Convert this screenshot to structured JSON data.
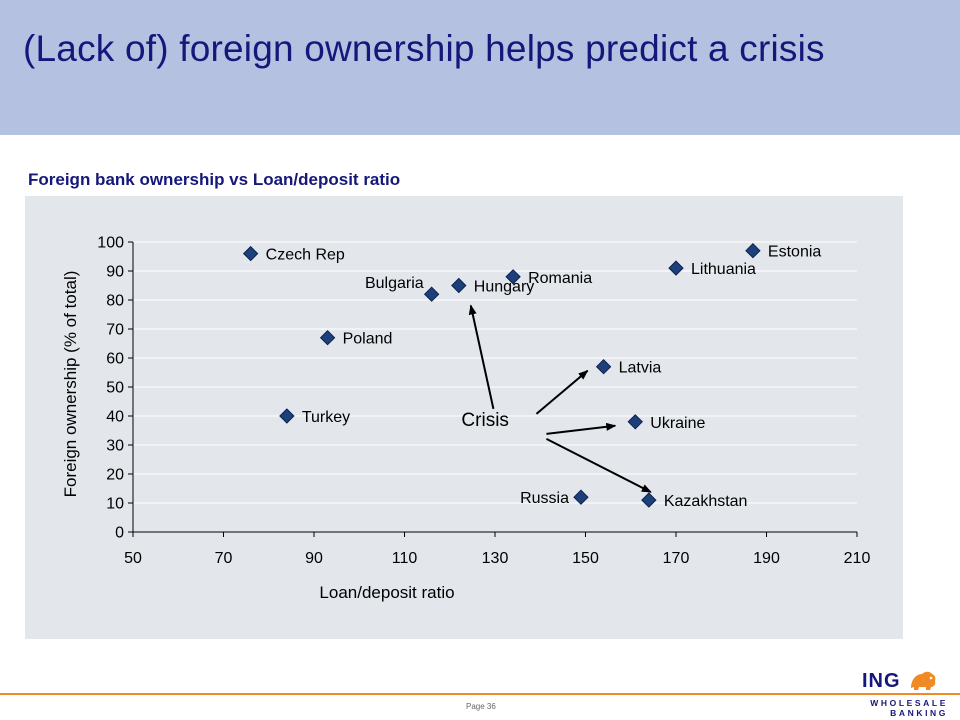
{
  "slide": {
    "title": "(Lack of) foreign ownership helps predict a crisis",
    "subtitle": "Foreign bank ownership vs Loan/deposit ratio",
    "page_number": "Page 36"
  },
  "logo": {
    "brand": "ING",
    "tagline": "WHOLESALE BANKING",
    "icon": "lion-icon"
  },
  "colors": {
    "header_band": "#b4c1e0",
    "title": "#16177a",
    "plot_background": "#e3e7ec",
    "marker": "#1d3f7a",
    "footer_line": "#f08a24"
  },
  "chart_data": {
    "type": "scatter",
    "xlabel": "Loan/deposit ratio",
    "ylabel": "Foreign ownership (% of total)",
    "xlim": [
      50,
      210
    ],
    "ylim": [
      0,
      100
    ],
    "xticks": [
      50,
      70,
      90,
      110,
      130,
      150,
      170,
      190,
      210
    ],
    "yticks": [
      0,
      10,
      20,
      30,
      40,
      50,
      60,
      70,
      80,
      90,
      100
    ],
    "grid": "horizontal",
    "marker": "diamond",
    "points": [
      {
        "label": "Czech Rep",
        "x": 76,
        "y": 96
      },
      {
        "label": "Poland",
        "x": 93,
        "y": 67
      },
      {
        "label": "Turkey",
        "x": 84,
        "y": 40
      },
      {
        "label": "Bulgaria",
        "x": 116,
        "y": 82
      },
      {
        "label": "Hungary",
        "x": 122,
        "y": 85
      },
      {
        "label": "Romania",
        "x": 134,
        "y": 88
      },
      {
        "label": "Lithuania",
        "x": 170,
        "y": 91
      },
      {
        "label": "Estonia",
        "x": 187,
        "y": 97
      },
      {
        "label": "Latvia",
        "x": 154,
        "y": 57
      },
      {
        "label": "Ukraine",
        "x": 161,
        "y": 38
      },
      {
        "label": "Russia",
        "x": 149,
        "y": 12
      },
      {
        "label": "Kazakhstan",
        "x": 164,
        "y": 11
      }
    ],
    "annotation": {
      "text": "Crisis",
      "targets": [
        "Hungary",
        "Latvia",
        "Ukraine",
        "Kazakhstan"
      ]
    }
  }
}
